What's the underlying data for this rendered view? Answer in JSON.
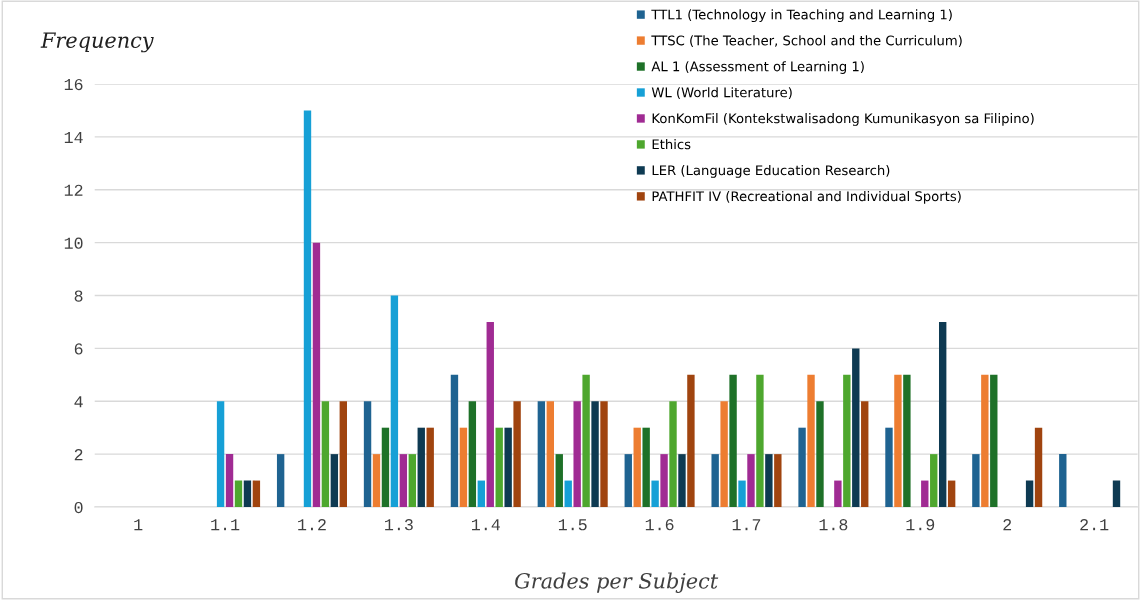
{
  "chart_data": {
    "type": "bar",
    "xlabel": "Grades per Subject",
    "ylabel": "Frequency",
    "categories": [
      "1",
      "1.1",
      "1.2",
      "1.3",
      "1.4",
      "1.5",
      "1.6",
      "1.7",
      "1.8",
      "1.9",
      "2",
      "2.1"
    ],
    "series": [
      {
        "name": "TTL1 (Technology in Teaching and Learning 1)",
        "color": "#1f6391",
        "values": [
          0,
          0,
          2,
          4,
          5,
          4,
          2,
          2,
          3,
          3,
          2,
          2
        ]
      },
      {
        "name": "TTSC (The Teacher, School and the Curriculum)",
        "color": "#ed7d31",
        "values": [
          0,
          0,
          0,
          2,
          3,
          4,
          3,
          4,
          5,
          5,
          5,
          0
        ]
      },
      {
        "name": "AL 1 (Assessment of Learning 1)",
        "color": "#1e7128",
        "values": [
          0,
          0,
          0,
          3,
          4,
          2,
          3,
          5,
          4,
          5,
          5,
          0
        ]
      },
      {
        "name": "WL (World Literature)",
        "color": "#16a0d6",
        "values": [
          0,
          4,
          15,
          8,
          1,
          1,
          1,
          1,
          0,
          0,
          0,
          0
        ]
      },
      {
        "name": "KonKomFil (Kontekstwalisadong Kumunikasyon sa Filipino)",
        "color": "#a02b93",
        "values": [
          0,
          2,
          10,
          2,
          7,
          4,
          2,
          2,
          1,
          1,
          0,
          0
        ]
      },
      {
        "name": "Ethics",
        "color": "#4ea72e",
        "values": [
          0,
          1,
          4,
          2,
          3,
          5,
          4,
          5,
          5,
          2,
          0,
          0
        ]
      },
      {
        "name": "LER (Language Education Research)",
        "color": "#0e3a52",
        "values": [
          0,
          1,
          2,
          3,
          3,
          4,
          2,
          2,
          6,
          7,
          1,
          1
        ]
      },
      {
        "name": "PATHFIT IV (Recreational and Individual Sports)",
        "color": "#a0440f",
        "values": [
          0,
          1,
          4,
          3,
          4,
          4,
          5,
          2,
          4,
          1,
          3,
          0
        ]
      }
    ],
    "ylim": [
      0,
      16
    ],
    "yticks": [
      0,
      2,
      4,
      6,
      8,
      10,
      12,
      14,
      16
    ],
    "grid": "y",
    "legend": "top right"
  }
}
